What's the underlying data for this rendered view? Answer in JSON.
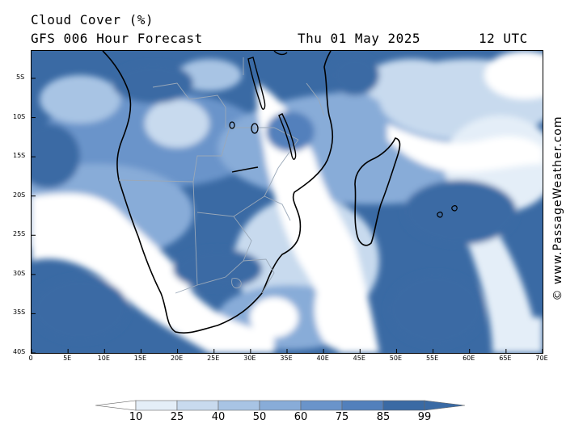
{
  "header": {
    "title": "Cloud Cover (%)",
    "model": "GFS 006 Hour Forecast",
    "date": "Thu 01 May 2025",
    "time": "12 UTC"
  },
  "watermark": "© www.PassageWeather.com",
  "axes": {
    "lat_labels": [
      "5S",
      "10S",
      "15S",
      "20S",
      "25S",
      "30S",
      "35S",
      "40S"
    ],
    "lat_values": [
      -5,
      -10,
      -15,
      -20,
      -25,
      -30,
      -35,
      -40
    ],
    "lon_labels": [
      "0",
      "5E",
      "10E",
      "15E",
      "20E",
      "25E",
      "30E",
      "35E",
      "40E",
      "45E",
      "50E",
      "55E",
      "60E",
      "65E",
      "70E"
    ],
    "lon_values": [
      0,
      5,
      10,
      15,
      20,
      25,
      30,
      35,
      40,
      45,
      50,
      55,
      60,
      65,
      70
    ],
    "lat_range": [
      -40,
      -1.5
    ],
    "lon_range": [
      0,
      70
    ]
  },
  "legend": {
    "labels": [
      "10",
      "25",
      "40",
      "50",
      "60",
      "75",
      "85",
      "99"
    ],
    "colors": [
      "#ffffff",
      "#e4eef8",
      "#c8daee",
      "#a8c4e4",
      "#88acd8",
      "#6a94ca",
      "#5280bc",
      "#3a6aa4"
    ]
  }
}
